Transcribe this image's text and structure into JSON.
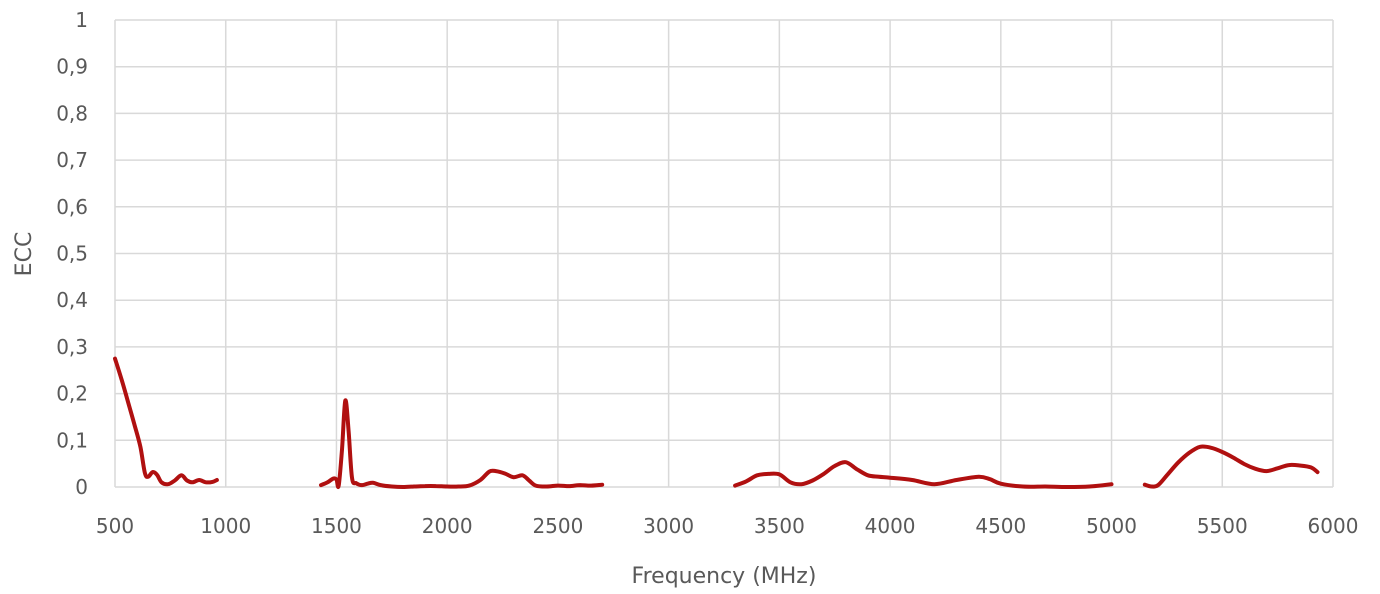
{
  "chart_data": {
    "type": "line",
    "title": "",
    "xlabel": "Frequency (MHz)",
    "ylabel": "ECC",
    "xlim": [
      500,
      6000
    ],
    "ylim": [
      0,
      1
    ],
    "x_ticks": [
      500,
      1000,
      1500,
      2000,
      2500,
      3000,
      3500,
      4000,
      4500,
      5000,
      5500,
      6000
    ],
    "y_ticks": [
      0,
      0.1,
      0.2,
      0.3,
      0.4,
      0.5,
      0.6,
      0.7,
      0.8,
      0.9,
      1
    ],
    "x_tick_labels": [
      "500",
      "1000",
      "1500",
      "2000",
      "2500",
      "3000",
      "3500",
      "4000",
      "4500",
      "5000",
      "5500",
      "6000"
    ],
    "y_tick_labels": [
      "0",
      "0,1",
      "0,2",
      "0,3",
      "0,4",
      "0,5",
      "0,6",
      "0,7",
      "0,8",
      "0,9",
      "1"
    ],
    "grid": true,
    "legend": "none",
    "series_color": "#b01010",
    "series": [
      {
        "segments": [
          [
            [
              500,
              0.275
            ],
            [
              530,
              0.23
            ],
            [
              560,
              0.18
            ],
            [
              590,
              0.13
            ],
            [
              615,
              0.085
            ],
            [
              635,
              0.03
            ],
            [
              650,
              0.022
            ],
            [
              670,
              0.032
            ],
            [
              690,
              0.026
            ],
            [
              710,
              0.01
            ],
            [
              740,
              0.006
            ],
            [
              770,
              0.014
            ],
            [
              800,
              0.025
            ],
            [
              825,
              0.014
            ],
            [
              850,
              0.01
            ],
            [
              880,
              0.015
            ],
            [
              910,
              0.01
            ],
            [
              940,
              0.011
            ],
            [
              960,
              0.015
            ]
          ],
          [
            [
              1430,
              0.004
            ],
            [
              1460,
              0.01
            ],
            [
              1485,
              0.018
            ],
            [
              1500,
              0.016
            ],
            [
              1510,
              0.003
            ],
            [
              1525,
              0.08
            ],
            [
              1540,
              0.185
            ],
            [
              1555,
              0.12
            ],
            [
              1570,
              0.02
            ],
            [
              1590,
              0.008
            ],
            [
              1615,
              0.004
            ],
            [
              1640,
              0.007
            ],
            [
              1665,
              0.009
            ],
            [
              1700,
              0.004
            ],
            [
              1750,
              0.001
            ],
            [
              1800,
              0.0
            ],
            [
              1850,
              0.001
            ],
            [
              1900,
              0.002
            ],
            [
              1950,
              0.002
            ],
            [
              2000,
              0.001
            ],
            [
              2050,
              0.001
            ],
            [
              2100,
              0.003
            ],
            [
              2150,
              0.015
            ],
            [
              2190,
              0.033
            ],
            [
              2220,
              0.034
            ],
            [
              2260,
              0.029
            ],
            [
              2300,
              0.021
            ],
            [
              2340,
              0.025
            ],
            [
              2370,
              0.014
            ],
            [
              2400,
              0.003
            ],
            [
              2450,
              0.001
            ],
            [
              2500,
              0.003
            ],
            [
              2550,
              0.002
            ],
            [
              2600,
              0.004
            ],
            [
              2650,
              0.003
            ],
            [
              2700,
              0.005
            ]
          ],
          [
            [
              3300,
              0.003
            ],
            [
              3350,
              0.012
            ],
            [
              3400,
              0.025
            ],
            [
              3450,
              0.028
            ],
            [
              3500,
              0.027
            ],
            [
              3550,
              0.01
            ],
            [
              3600,
              0.006
            ],
            [
              3650,
              0.014
            ],
            [
              3700,
              0.028
            ],
            [
              3750,
              0.045
            ],
            [
              3800,
              0.053
            ],
            [
              3850,
              0.038
            ],
            [
              3900,
              0.025
            ],
            [
              3950,
              0.022
            ],
            [
              4000,
              0.02
            ],
            [
              4100,
              0.015
            ],
            [
              4200,
              0.006
            ],
            [
              4300,
              0.015
            ],
            [
              4400,
              0.022
            ],
            [
              4450,
              0.017
            ],
            [
              4500,
              0.007
            ],
            [
              4600,
              0.001
            ],
            [
              4700,
              0.001
            ],
            [
              4800,
              0.0
            ],
            [
              4900,
              0.001
            ],
            [
              5000,
              0.006
            ]
          ],
          [
            [
              5150,
              0.005
            ],
            [
              5180,
              0.001
            ],
            [
              5210,
              0.004
            ],
            [
              5250,
              0.025
            ],
            [
              5300,
              0.052
            ],
            [
              5350,
              0.073
            ],
            [
              5400,
              0.086
            ],
            [
              5450,
              0.084
            ],
            [
              5500,
              0.075
            ],
            [
              5550,
              0.063
            ],
            [
              5600,
              0.049
            ],
            [
              5650,
              0.039
            ],
            [
              5700,
              0.034
            ],
            [
              5750,
              0.04
            ],
            [
              5800,
              0.047
            ],
            [
              5850,
              0.046
            ],
            [
              5900,
              0.042
            ],
            [
              5930,
              0.032
            ]
          ]
        ]
      }
    ]
  }
}
